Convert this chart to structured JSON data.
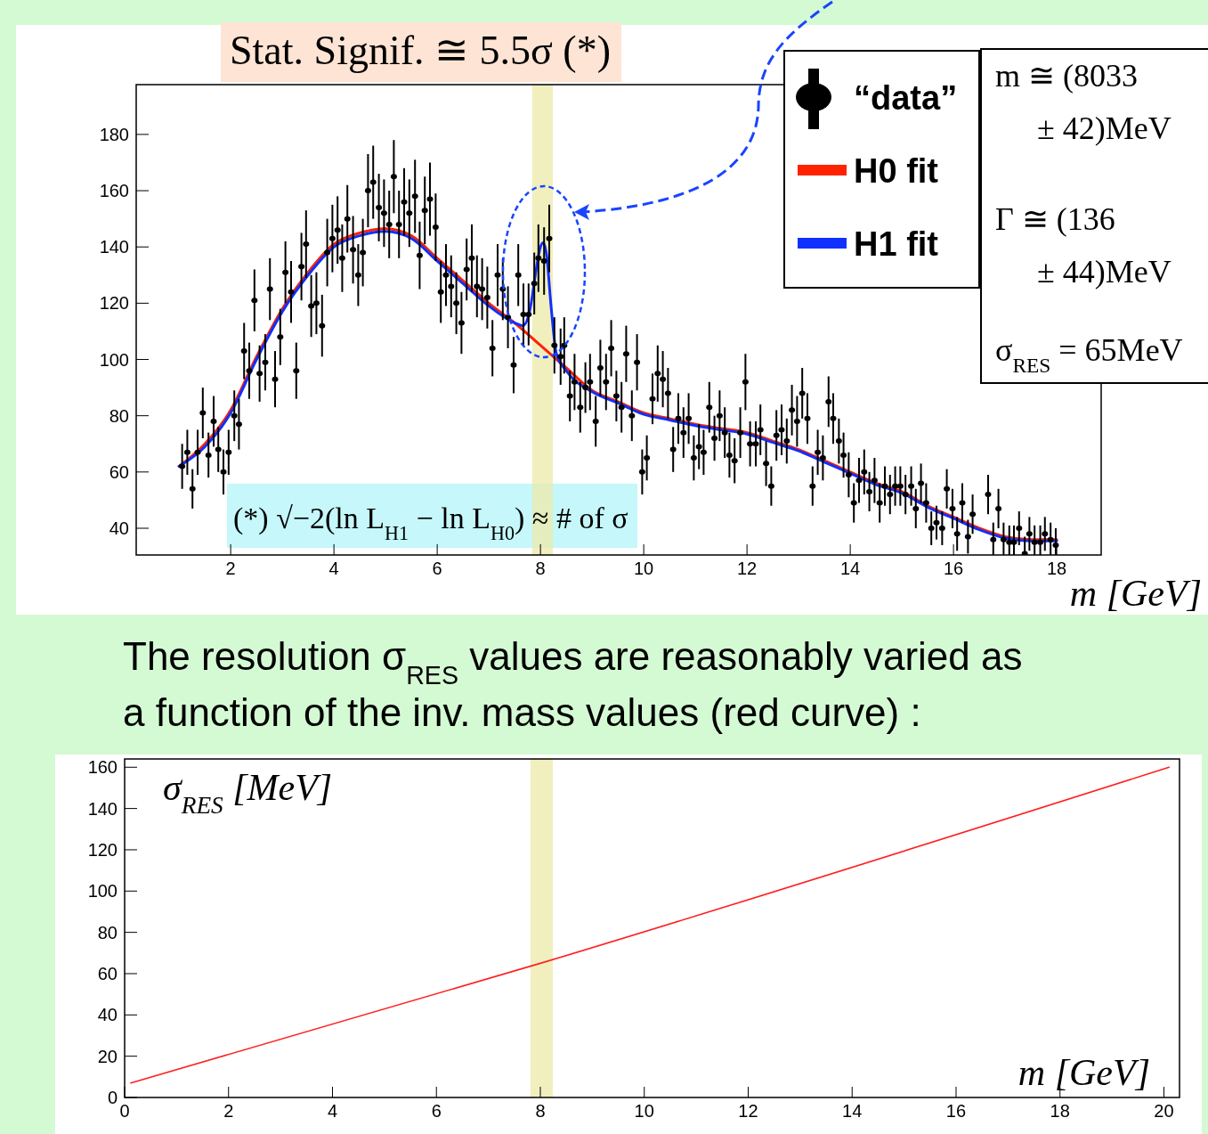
{
  "chart_data": [
    {
      "type": "scatter",
      "title": "Stat. Signif. ≅ 5.5σ (*)",
      "xlabel": "m [GeV]",
      "xlim": [
        0.17,
        18.86
      ],
      "ylim": [
        30.5,
        197.7
      ],
      "xticks": [
        2,
        4,
        6,
        8,
        10,
        12,
        14,
        16,
        18
      ],
      "yticks": [
        40,
        60,
        80,
        100,
        120,
        140,
        160,
        180
      ],
      "grid": false,
      "legend": "top right",
      "bands": [
        {
          "axis": "x",
          "from": 7.84,
          "to": 8.24,
          "color": "#ece9a8"
        }
      ],
      "annotations": [
        "(*) √−2(ln L$_{H1}$ − ln L$_{H0}$) ≈ # of σ",
        "m ≅ (8033\n± 42)MeV",
        "Γ ≅ (136\n± 44)MeV",
        "σ$_{RES}$ = 65MeV"
      ],
      "series": [
        {
          "name": "“data”",
          "marker": "circle",
          "color": "#000000",
          "x": [
            1.06,
            1.16,
            1.26,
            1.36,
            1.46,
            1.57,
            1.67,
            1.76,
            1.86,
            1.96,
            2.07,
            2.16,
            2.26,
            2.36,
            2.46,
            2.56,
            2.67,
            2.76,
            2.86,
            2.96,
            3.06,
            3.17,
            3.27,
            3.37,
            3.46,
            3.56,
            3.66,
            3.77,
            3.87,
            3.97,
            4.07,
            4.16,
            4.26,
            4.37,
            4.47,
            4.56,
            4.66,
            4.76,
            4.87,
            4.97,
            5.07,
            5.16,
            5.26,
            5.36,
            5.46,
            5.57,
            5.66,
            5.76,
            5.86,
            5.97,
            6.07,
            6.17,
            6.27,
            6.37,
            6.47,
            6.57,
            6.67,
            6.77,
            6.87,
            6.97,
            7.07,
            7.17,
            7.27,
            7.37,
            7.48,
            7.57,
            7.67,
            7.77,
            7.88,
            7.96,
            8.07,
            8.17,
            8.27,
            8.39,
            8.46,
            8.57,
            8.66,
            8.77,
            8.87,
            8.96,
            9.07,
            9.16,
            9.27,
            9.37,
            9.47,
            9.57,
            9.66,
            9.77,
            9.87,
            9.97,
            10.06,
            10.17,
            10.27,
            10.37,
            10.47,
            10.57,
            10.67,
            10.77,
            10.87,
            10.97,
            11.07,
            11.16,
            11.27,
            11.37,
            11.47,
            11.57,
            11.66,
            11.76,
            11.87,
            11.97,
            12.06,
            12.17,
            12.26,
            12.37,
            12.47,
            12.57,
            12.67,
            12.77,
            12.87,
            12.97,
            13.07,
            13.17,
            13.27,
            13.37,
            13.47,
            13.58,
            13.67,
            13.78,
            13.87,
            13.97,
            14.07,
            14.17,
            14.27,
            14.37,
            14.47,
            14.57,
            14.67,
            14.77,
            14.87,
            14.97,
            15.07,
            15.18,
            15.27,
            15.37,
            15.47,
            15.57,
            15.67,
            15.78,
            15.87,
            15.98,
            16.07,
            16.17,
            16.28,
            16.37,
            16.67,
            16.77,
            16.87,
            16.97,
            17.08,
            17.17,
            17.27,
            17.38,
            17.47,
            17.57,
            17.68,
            17.77,
            17.88,
            17.98
          ],
          "values": [
            62,
            67,
            54,
            67,
            81,
            66,
            78,
            68,
            60,
            67,
            80,
            77,
            103,
            96,
            121,
            95,
            99,
            125,
            93,
            108,
            131,
            124,
            96,
            133,
            141,
            119,
            120,
            112,
            138,
            143,
            146,
            136,
            150,
            139,
            130,
            138,
            160,
            163,
            154,
            152,
            148,
            165,
            148,
            156,
            152,
            158,
            137,
            153,
            157,
            147,
            124,
            130,
            126,
            120,
            113,
            132,
            136,
            126,
            125,
            122,
            104,
            130,
            125,
            115,
            98,
            130,
            116,
            116,
            127,
            136,
            135,
            143,
            105,
            101,
            105,
            87,
            92,
            83,
            90,
            92,
            78,
            97,
            92,
            104,
            87,
            83,
            102,
            80,
            99,
            60,
            65,
            86,
            95,
            93,
            88,
            68,
            79,
            74,
            79,
            65,
            69,
            67,
            83,
            72,
            80,
            74,
            66,
            64,
            74,
            92,
            70,
            70,
            75,
            63,
            55,
            73,
            75,
            71,
            82,
            78,
            88,
            79,
            55,
            67,
            65,
            85,
            79,
            71,
            66,
            59,
            49,
            57,
            60,
            53,
            57,
            49,
            55,
            52,
            55,
            55,
            52,
            55,
            47,
            56,
            49,
            40,
            42,
            40,
            54,
            47,
            38,
            49,
            37,
            45,
            52,
            36,
            47,
            36,
            35,
            35,
            40,
            31,
            38,
            35,
            35,
            38,
            36,
            34
          ],
          "errors": [
            8,
            8,
            7,
            8,
            9,
            8,
            9,
            8,
            8,
            8,
            9,
            9,
            10,
            10,
            11,
            10,
            10,
            11,
            10,
            10,
            11,
            11,
            10,
            12,
            12,
            11,
            11,
            11,
            12,
            12,
            12,
            12,
            12,
            12,
            11,
            12,
            13,
            13,
            12,
            12,
            12,
            13,
            12,
            12,
            12,
            13,
            12,
            12,
            13,
            12,
            11,
            11,
            11,
            11,
            11,
            11,
            12,
            11,
            11,
            11,
            10,
            11,
            11,
            11,
            10,
            11,
            11,
            11,
            11,
            12,
            12,
            12,
            10,
            10,
            10,
            9,
            10,
            9,
            9,
            10,
            9,
            10,
            10,
            10,
            9,
            9,
            10,
            9,
            10,
            8,
            8,
            9,
            10,
            10,
            9,
            8,
            9,
            9,
            9,
            8,
            8,
            8,
            9,
            8,
            9,
            9,
            8,
            8,
            9,
            10,
            8,
            8,
            9,
            8,
            7,
            9,
            9,
            8,
            9,
            9,
            9,
            9,
            7,
            8,
            8,
            9,
            9,
            8,
            8,
            8,
            7,
            8,
            8,
            7,
            8,
            7,
            7,
            7,
            7,
            7,
            7,
            7,
            7,
            7,
            7,
            6,
            6,
            6,
            7,
            7,
            6,
            7,
            6,
            7,
            7,
            [
              30.5,
              42
            ],
            7,
            [
              30.5,
              42
            ],
            [
              30.5,
              41
            ],
            [
              30.5,
              41
            ],
            6,
            [
              30.5,
              37
            ],
            6,
            [
              30.5,
              41
            ],
            [
              30.5,
              41
            ],
            6,
            [
              30.5,
              42
            ],
            [
              30.5,
              40
            ]
          ]
        },
        {
          "name": "H0 fit",
          "type": "line",
          "line_style": "solid",
          "color": "#ff2200",
          "x": [
            1,
            1.5,
            2,
            2.5,
            3,
            3.5,
            4,
            4.5,
            5,
            5.5,
            6,
            6.5,
            7,
            7.5,
            8,
            8.5,
            9,
            9.5,
            10,
            10.5,
            11,
            11.5,
            12,
            12.5,
            13,
            13.5,
            14,
            14.5,
            15,
            15.5,
            16,
            16.5,
            17,
            17.5,
            18
          ],
          "values": [
            62,
            70,
            82,
            101,
            118,
            131,
            141,
            145,
            146.5,
            144,
            136,
            128,
            120,
            113,
            105,
            97,
            89,
            85,
            81,
            79,
            77,
            75.5,
            74,
            71,
            68,
            64,
            60,
            56,
            53,
            48,
            44,
            40,
            37,
            36,
            36
          ]
        },
        {
          "name": "H1 fit",
          "type": "line",
          "line_style": "solid",
          "color": "#1030ff",
          "x": [
            1,
            1.5,
            2,
            2.5,
            3,
            3.5,
            4,
            4.5,
            5,
            5.5,
            6,
            6.5,
            7,
            7.5,
            7.66,
            7.8,
            7.9,
            8,
            8.05,
            8.12,
            8.2,
            8.31,
            8.5,
            9,
            9.5,
            10,
            10.5,
            11,
            11.5,
            12,
            12.5,
            13,
            13.5,
            14,
            14.5,
            15,
            15.5,
            16,
            16.5,
            17,
            17.5,
            18
          ],
          "values": [
            62,
            69,
            81,
            100,
            117,
            130,
            140,
            144,
            145.5,
            143,
            135,
            127,
            119,
            113,
            112,
            118,
            130,
            140,
            141.5,
            137,
            120,
            102,
            96,
            88.5,
            84.5,
            80.5,
            78.5,
            76.5,
            75,
            73.5,
            70.5,
            67.5,
            63.5,
            59.5,
            55.5,
            52.5,
            47.5,
            43.5,
            39.5,
            36.5,
            35.5,
            35.5
          ]
        }
      ]
    },
    {
      "type": "line",
      "title": "The resolution σ$_{RES}$ values are reasonably varied as a function of the inv. mass values (red curve) :",
      "xlabel": "m [GeV]",
      "ylabel": "σ$_{RES}$ [MeV]",
      "xlim": [
        0,
        20.3
      ],
      "ylim": [
        0,
        164
      ],
      "xticks": [
        0,
        2,
        4,
        6,
        8,
        10,
        12,
        14,
        16,
        18,
        20
      ],
      "yticks": [
        0,
        20,
        40,
        60,
        80,
        100,
        120,
        140,
        160
      ],
      "grid": false,
      "legend": false,
      "bands": [
        {
          "axis": "x",
          "from": 7.81,
          "to": 8.24,
          "color": "#ece9a8"
        }
      ],
      "series": [
        {
          "line_style": "solid",
          "color": "#ff2020",
          "x": [
            0.12,
            8,
            20.1
          ],
          "values": [
            7,
            65,
            160
          ]
        }
      ]
    }
  ]
}
